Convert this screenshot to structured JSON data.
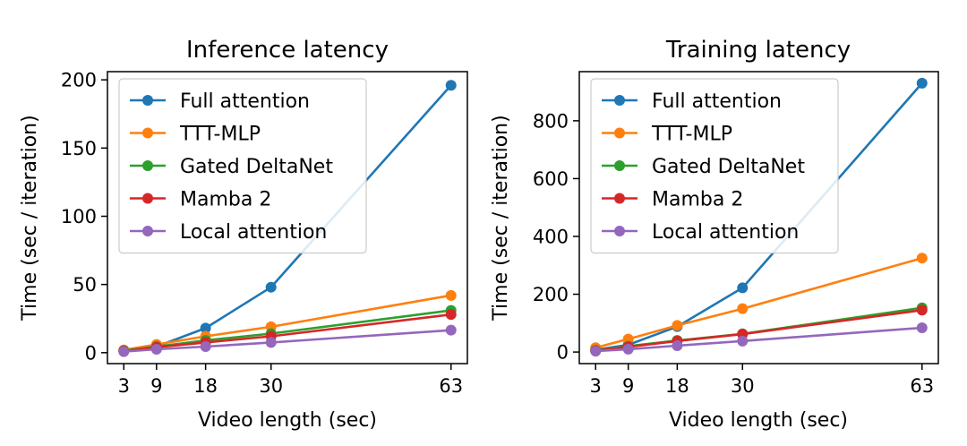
{
  "chart_data": [
    {
      "type": "line",
      "title": "Inference latency",
      "xlabel": "Video length (sec)",
      "ylabel": "Time (sec / iteration)",
      "x": [
        3,
        9,
        18,
        30,
        63
      ],
      "xticks": [
        3,
        9,
        18,
        30,
        63
      ],
      "yticks": [
        0,
        50,
        100,
        150,
        200
      ],
      "xlim": [
        0,
        66
      ],
      "ylim": [
        -8,
        206
      ],
      "legend": "top-left",
      "series": [
        {
          "name": "Full attention",
          "color": "#1f77b4",
          "values": [
            1.5,
            4.5,
            18,
            48,
            196
          ]
        },
        {
          "name": "TTT-MLP",
          "color": "#ff7f0e",
          "values": [
            2,
            6,
            12,
            19,
            42
          ]
        },
        {
          "name": "Gated DeltaNet",
          "color": "#2ca02c",
          "values": [
            1.5,
            4.5,
            9,
            14,
            31
          ]
        },
        {
          "name": "Mamba 2",
          "color": "#d62728",
          "values": [
            1.2,
            4,
            7.5,
            12,
            28
          ]
        },
        {
          "name": "Local attention",
          "color": "#9467bd",
          "values": [
            0.8,
            2.5,
            4.5,
            7.5,
            16.5
          ]
        }
      ]
    },
    {
      "type": "line",
      "title": "Training latency",
      "xlabel": "Video length (sec)",
      "ylabel": "Time (sec / iteration)",
      "x": [
        3,
        9,
        18,
        30,
        63
      ],
      "xticks": [
        3,
        9,
        18,
        30,
        63
      ],
      "yticks": [
        0,
        200,
        400,
        600,
        800
      ],
      "xlim": [
        0,
        66
      ],
      "ylim": [
        -40,
        970
      ],
      "legend": "top-left",
      "series": [
        {
          "name": "Full attention",
          "color": "#1f77b4",
          "values": [
            8,
            25,
            88,
            222,
            930
          ]
        },
        {
          "name": "TTT-MLP",
          "color": "#ff7f0e",
          "values": [
            15,
            45,
            92,
            150,
            325
          ]
        },
        {
          "name": "Gated DeltaNet",
          "color": "#2ca02c",
          "values": [
            6,
            20,
            40,
            63,
            153
          ]
        },
        {
          "name": "Mamba 2",
          "color": "#d62728",
          "values": [
            5,
            18,
            38,
            62,
            145
          ]
        },
        {
          "name": "Local attention",
          "color": "#9467bd",
          "values": [
            3,
            10,
            22,
            38,
            84
          ]
        }
      ]
    }
  ]
}
